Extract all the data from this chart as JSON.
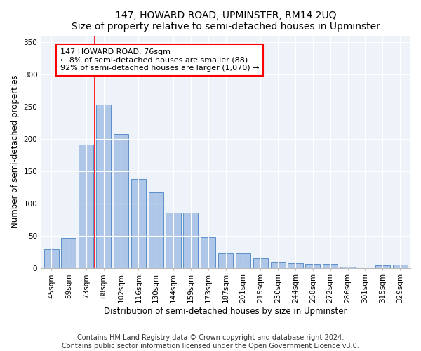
{
  "title": "147, HOWARD ROAD, UPMINSTER, RM14 2UQ",
  "subtitle": "Size of property relative to semi-detached houses in Upminster",
  "xlabel": "Distribution of semi-detached houses by size in Upminster",
  "ylabel": "Number of semi-detached properties",
  "categories": [
    "45sqm",
    "59sqm",
    "73sqm",
    "88sqm",
    "102sqm",
    "116sqm",
    "130sqm",
    "144sqm",
    "159sqm",
    "173sqm",
    "187sqm",
    "201sqm",
    "215sqm",
    "230sqm",
    "244sqm",
    "258sqm",
    "272sqm",
    "286sqm",
    "301sqm",
    "315sqm",
    "329sqm"
  ],
  "values": [
    29,
    46,
    191,
    253,
    207,
    138,
    117,
    85,
    85,
    48,
    23,
    23,
    15,
    9,
    7,
    6,
    6,
    2,
    0,
    4,
    5
  ],
  "bar_color": "#aec6e8",
  "bar_edge_color": "#5b8fc9",
  "annotation_text_line1": "147 HOWARD ROAD: 76sqm",
  "annotation_text_line2": "← 8% of semi-detached houses are smaller (88)",
  "annotation_text_line3": "92% of semi-detached houses are larger (1,070) →",
  "annotation_box_color": "white",
  "annotation_box_edge_color": "red",
  "vline_color": "red",
  "ylim": [
    0,
    360
  ],
  "yticks": [
    0,
    50,
    100,
    150,
    200,
    250,
    300,
    350
  ],
  "footnote_line1": "Contains HM Land Registry data © Crown copyright and database right 2024.",
  "footnote_line2": "Contains public sector information licensed under the Open Government Licence v3.0.",
  "background_color": "#eef2f9",
  "title_fontsize": 10,
  "subtitle_fontsize": 9,
  "axis_label_fontsize": 8.5,
  "tick_fontsize": 7.5,
  "annotation_fontsize": 8,
  "footnote_fontsize": 7
}
